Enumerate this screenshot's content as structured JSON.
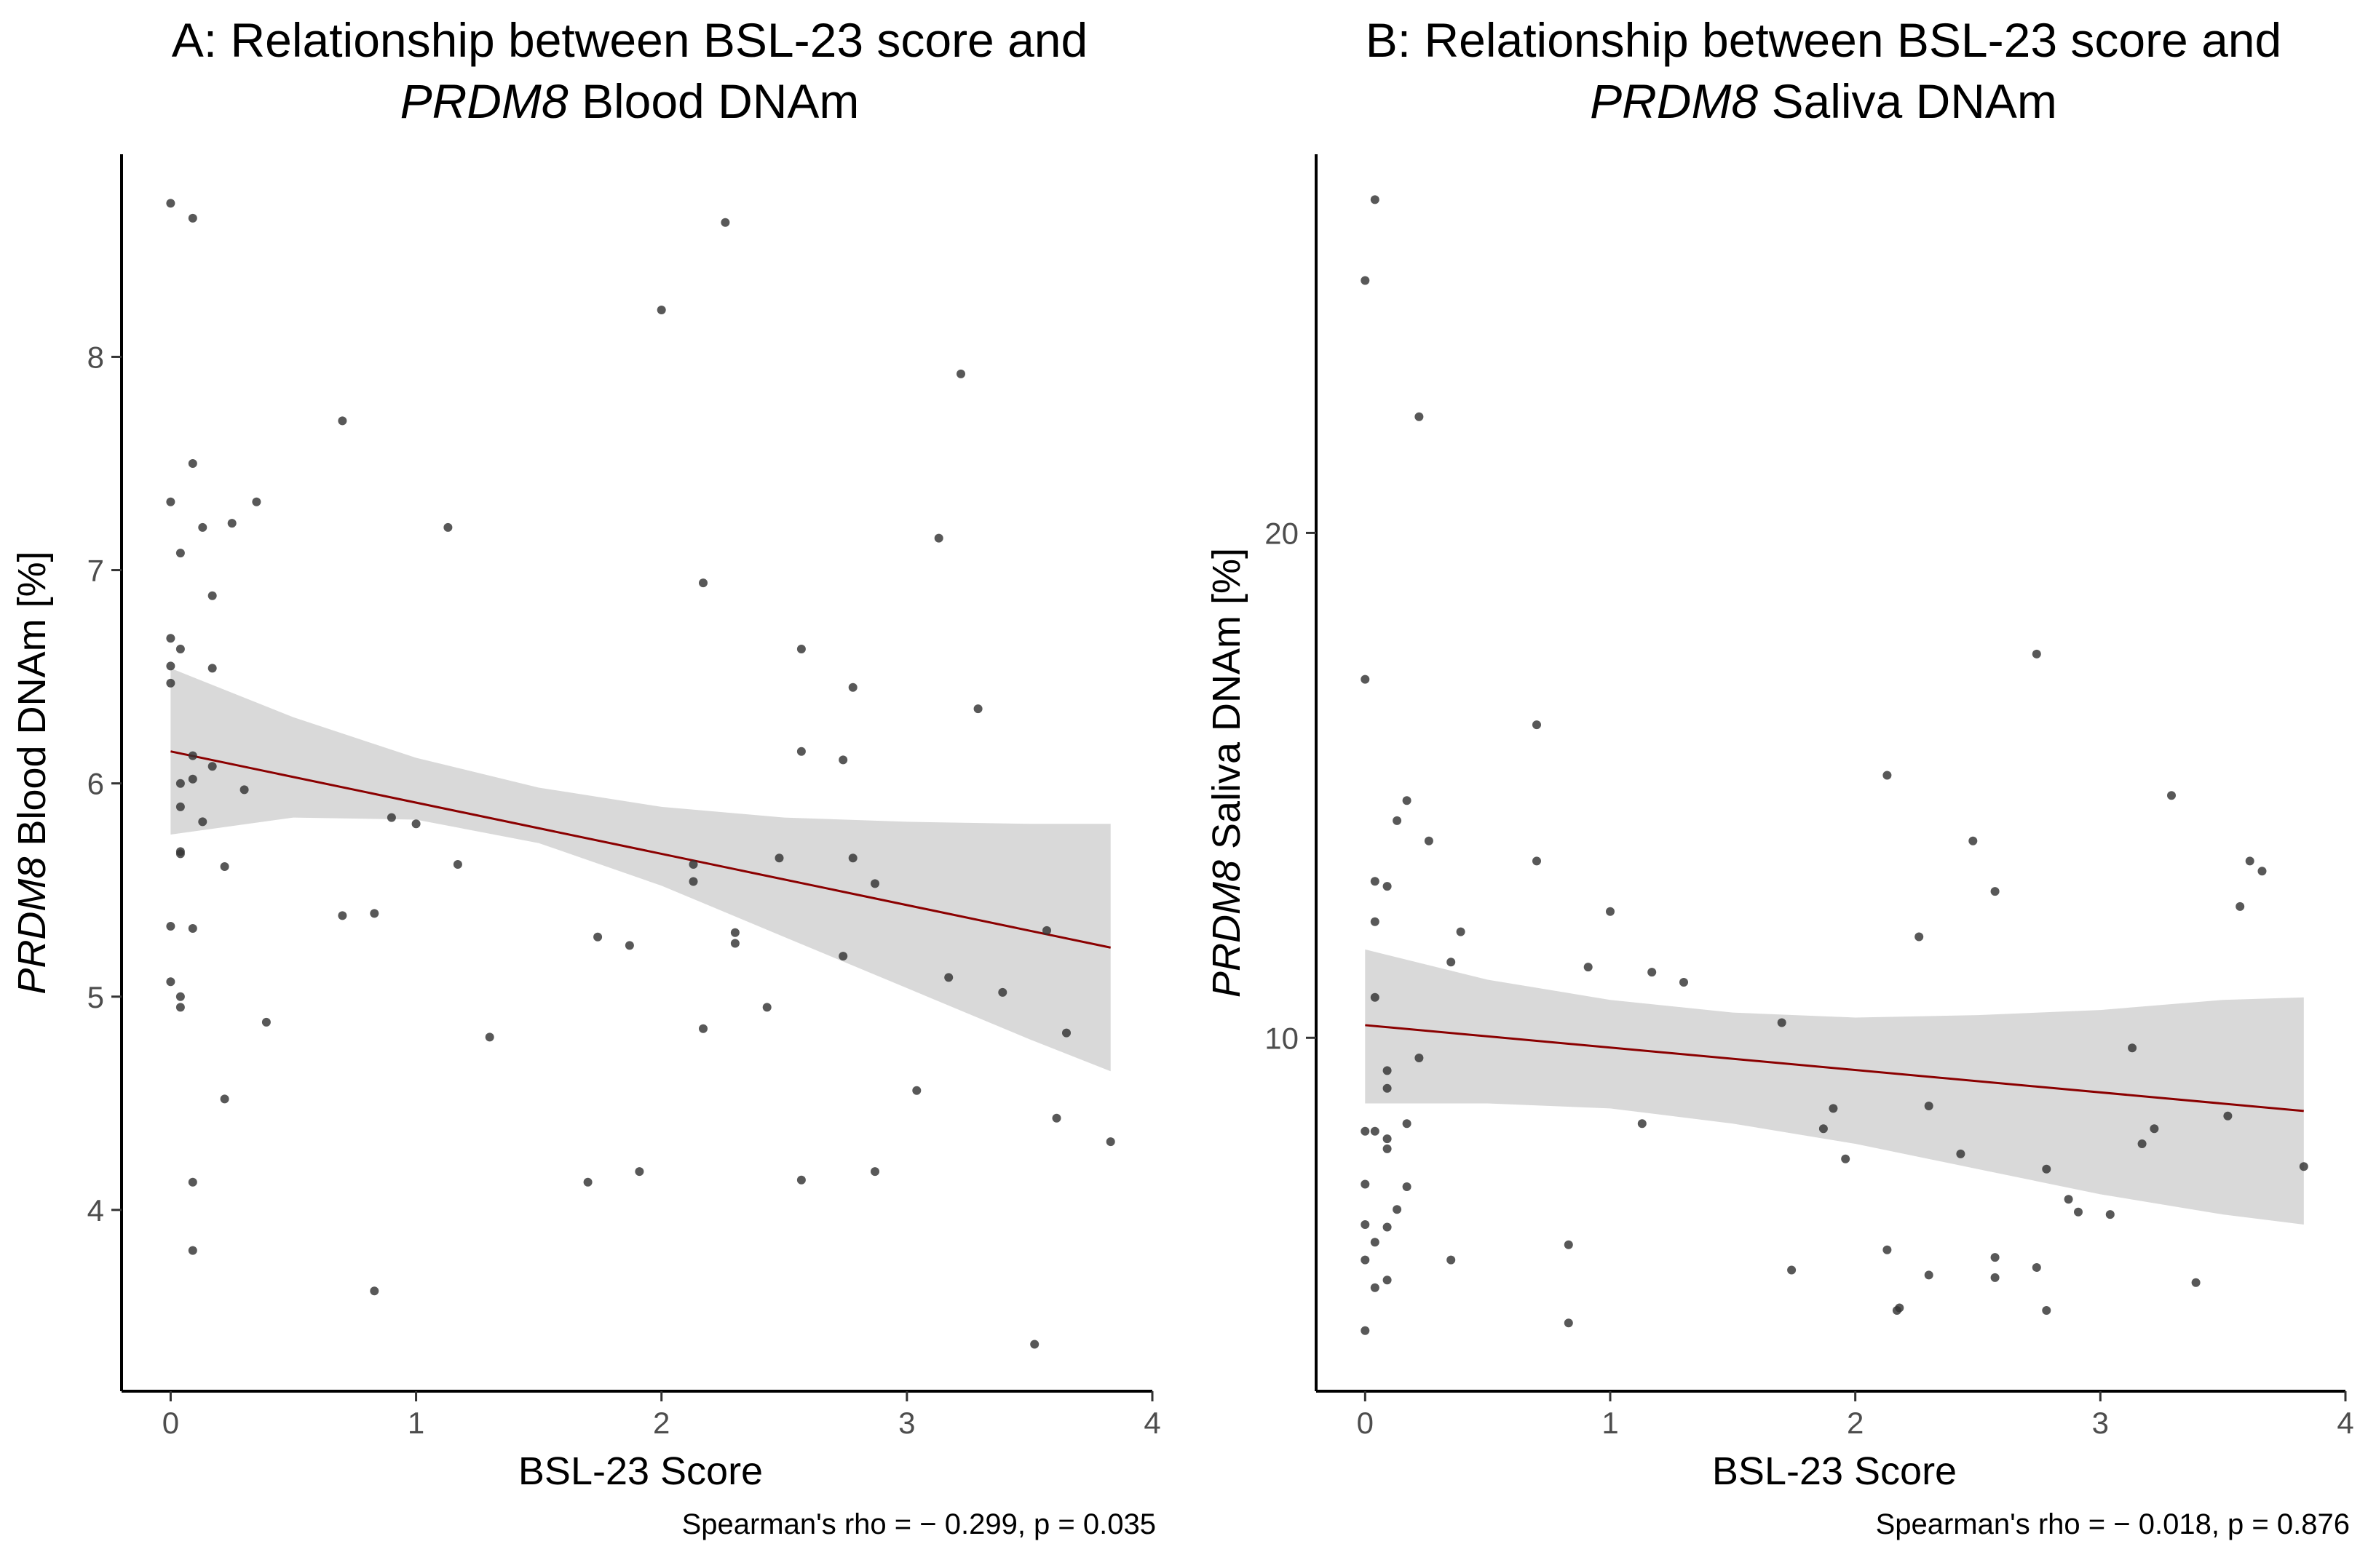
{
  "chart_data": [
    {
      "type": "scatter",
      "title_line1": "A: Relationship between BSL-23 score and",
      "title_line2_italic": "PRDM8",
      "title_line2_rest": " Blood DNAm",
      "xlabel": "BSL-23 Score",
      "ylabel_italic": "PRDM8",
      "ylabel_rest": " Blood DNAm [%]",
      "xlim": [
        -0.2,
        4.0
      ],
      "ylim": [
        3.15,
        8.95
      ],
      "xticks": [
        0,
        1,
        2,
        3,
        4
      ],
      "yticks": [
        4,
        5,
        6,
        7,
        8
      ],
      "caption": "Spearman's rho = − 0.299, p = 0.035",
      "point_color": "#333333",
      "fit_color": "#8b0000",
      "band_color": "#d9d9d9",
      "fit": {
        "x": [
          0,
          3.83
        ],
        "y": [
          6.15,
          5.23
        ]
      },
      "band": {
        "x": [
          0,
          0.5,
          1.0,
          1.5,
          2.0,
          2.5,
          3.0,
          3.5,
          3.83
        ],
        "upper": [
          6.54,
          6.31,
          6.12,
          5.98,
          5.89,
          5.84,
          5.82,
          5.81,
          5.81
        ],
        "lower": [
          5.76,
          5.84,
          5.83,
          5.72,
          5.52,
          5.28,
          5.04,
          4.8,
          4.65
        ]
      },
      "points": [
        [
          0.0,
          8.72
        ],
        [
          0.09,
          8.65
        ],
        [
          2.26,
          8.63
        ],
        [
          2.0,
          8.22
        ],
        [
          3.22,
          7.92
        ],
        [
          0.7,
          7.7
        ],
        [
          0.09,
          7.5
        ],
        [
          0.0,
          7.32
        ],
        [
          0.35,
          7.32
        ],
        [
          0.25,
          7.22
        ],
        [
          0.13,
          7.2
        ],
        [
          1.13,
          7.2
        ],
        [
          3.13,
          7.15
        ],
        [
          0.04,
          7.08
        ],
        [
          2.17,
          6.94
        ],
        [
          0.17,
          6.88
        ],
        [
          0.0,
          6.68
        ],
        [
          0.04,
          6.63
        ],
        [
          2.57,
          6.63
        ],
        [
          0.0,
          6.55
        ],
        [
          0.17,
          6.54
        ],
        [
          0.0,
          6.47
        ],
        [
          2.78,
          6.45
        ],
        [
          3.29,
          6.35
        ],
        [
          2.57,
          6.15
        ],
        [
          2.74,
          6.11
        ],
        [
          0.09,
          6.13
        ],
        [
          0.17,
          6.08
        ],
        [
          0.09,
          6.02
        ],
        [
          0.04,
          6.0
        ],
        [
          0.3,
          5.97
        ],
        [
          0.04,
          5.89
        ],
        [
          0.9,
          5.84
        ],
        [
          0.13,
          5.82
        ],
        [
          1.0,
          5.81
        ],
        [
          0.04,
          5.68
        ],
        [
          0.04,
          5.67
        ],
        [
          2.48,
          5.65
        ],
        [
          2.78,
          5.65
        ],
        [
          2.13,
          5.62
        ],
        [
          1.17,
          5.62
        ],
        [
          0.22,
          5.61
        ],
        [
          2.13,
          5.54
        ],
        [
          2.87,
          5.53
        ],
        [
          0.7,
          5.38
        ],
        [
          0.83,
          5.39
        ],
        [
          0.0,
          5.33
        ],
        [
          0.09,
          5.32
        ],
        [
          3.57,
          5.31
        ],
        [
          2.3,
          5.3
        ],
        [
          1.74,
          5.28
        ],
        [
          2.3,
          5.25
        ],
        [
          1.87,
          5.24
        ],
        [
          2.74,
          5.19
        ],
        [
          3.17,
          5.09
        ],
        [
          0.0,
          5.07
        ],
        [
          3.39,
          5.02
        ],
        [
          0.04,
          5.0
        ],
        [
          0.04,
          4.95
        ],
        [
          2.43,
          4.95
        ],
        [
          0.39,
          4.88
        ],
        [
          2.17,
          4.85
        ],
        [
          3.65,
          4.83
        ],
        [
          1.3,
          4.81
        ],
        [
          3.04,
          4.56
        ],
        [
          0.22,
          4.52
        ],
        [
          3.61,
          4.43
        ],
        [
          3.83,
          4.32
        ],
        [
          1.91,
          4.18
        ],
        [
          2.87,
          4.18
        ],
        [
          2.57,
          4.14
        ],
        [
          1.7,
          4.13
        ],
        [
          0.09,
          4.13
        ],
        [
          0.09,
          3.81
        ],
        [
          0.83,
          3.62
        ],
        [
          3.52,
          3.37
        ]
      ]
    },
    {
      "type": "scatter",
      "title_line1": "B: Relationship between BSL-23 score and",
      "title_line2_italic": "PRDM8",
      "title_line2_rest": " Saliva DNAm",
      "xlabel": "BSL-23 Score",
      "ylabel_italic": "PRDM8",
      "ylabel_rest": " Saliva DNAm [%]",
      "xlim": [
        -0.2,
        4.0
      ],
      "ylim": [
        3.0,
        27.5
      ],
      "xticks": [
        0,
        1,
        2,
        3,
        4
      ],
      "yticks": [
        10,
        20
      ],
      "caption": "Spearman's rho = − 0.018, p = 0.876",
      "point_color": "#333333",
      "fit_color": "#8b0000",
      "band_color": "#d9d9d9",
      "fit": {
        "x": [
          0,
          3.83
        ],
        "y": [
          10.25,
          8.55
        ]
      },
      "band": {
        "x": [
          0,
          0.5,
          1.0,
          1.5,
          2.0,
          2.5,
          3.0,
          3.5,
          3.83
        ],
        "upper": [
          11.75,
          11.15,
          10.75,
          10.5,
          10.4,
          10.45,
          10.55,
          10.75,
          10.8
        ],
        "lower": [
          8.7,
          8.7,
          8.6,
          8.3,
          7.9,
          7.4,
          6.9,
          6.5,
          6.3
        ]
      },
      "points": [
        [
          0.04,
          26.6
        ],
        [
          0.0,
          25.0
        ],
        [
          0.22,
          22.3
        ],
        [
          0.0,
          17.1
        ],
        [
          2.74,
          17.6
        ],
        [
          0.7,
          16.2
        ],
        [
          2.13,
          15.2
        ],
        [
          3.29,
          14.8
        ],
        [
          0.17,
          14.7
        ],
        [
          0.13,
          14.3
        ],
        [
          0.26,
          13.9
        ],
        [
          2.48,
          13.9
        ],
        [
          0.7,
          13.5
        ],
        [
          3.61,
          13.5
        ],
        [
          3.66,
          13.3
        ],
        [
          0.04,
          13.1
        ],
        [
          0.09,
          13.0
        ],
        [
          2.57,
          12.9
        ],
        [
          3.57,
          12.6
        ],
        [
          1.0,
          12.5
        ],
        [
          0.04,
          12.3
        ],
        [
          0.39,
          12.1
        ],
        [
          2.26,
          12.0
        ],
        [
          0.35,
          11.5
        ],
        [
          0.91,
          11.4
        ],
        [
          1.17,
          11.3
        ],
        [
          1.3,
          11.1
        ],
        [
          0.04,
          10.8
        ],
        [
          1.7,
          10.3
        ],
        [
          3.13,
          9.8
        ],
        [
          0.22,
          9.6
        ],
        [
          0.09,
          9.35
        ],
        [
          0.09,
          9.0
        ],
        [
          2.3,
          8.65
        ],
        [
          1.91,
          8.6
        ],
        [
          3.52,
          8.45
        ],
        [
          1.13,
          8.3
        ],
        [
          0.17,
          8.3
        ],
        [
          1.87,
          8.2
        ],
        [
          3.22,
          8.2
        ],
        [
          0.0,
          8.15
        ],
        [
          0.04,
          8.15
        ],
        [
          0.09,
          8.0
        ],
        [
          0.09,
          7.8
        ],
        [
          3.17,
          7.9
        ],
        [
          2.43,
          7.7
        ],
        [
          1.96,
          7.6
        ],
        [
          3.83,
          7.45
        ],
        [
          2.78,
          7.4
        ],
        [
          0.0,
          7.1
        ],
        [
          0.17,
          7.05
        ],
        [
          2.87,
          6.8
        ],
        [
          0.13,
          6.6
        ],
        [
          2.91,
          6.55
        ],
        [
          3.04,
          6.5
        ],
        [
          0.0,
          6.3
        ],
        [
          0.09,
          6.25
        ],
        [
          0.04,
          5.95
        ],
        [
          0.83,
          5.9
        ],
        [
          2.13,
          5.8
        ],
        [
          2.57,
          5.65
        ],
        [
          0.0,
          5.6
        ],
        [
          0.35,
          5.6
        ],
        [
          2.74,
          5.45
        ],
        [
          1.74,
          5.4
        ],
        [
          2.3,
          5.3
        ],
        [
          2.57,
          5.25
        ],
        [
          0.09,
          5.2
        ],
        [
          3.39,
          5.15
        ],
        [
          0.04,
          5.05
        ],
        [
          2.17,
          4.6
        ],
        [
          2.18,
          4.65
        ],
        [
          2.78,
          4.6
        ],
        [
          0.83,
          4.35
        ],
        [
          0.0,
          4.2
        ]
      ]
    }
  ]
}
